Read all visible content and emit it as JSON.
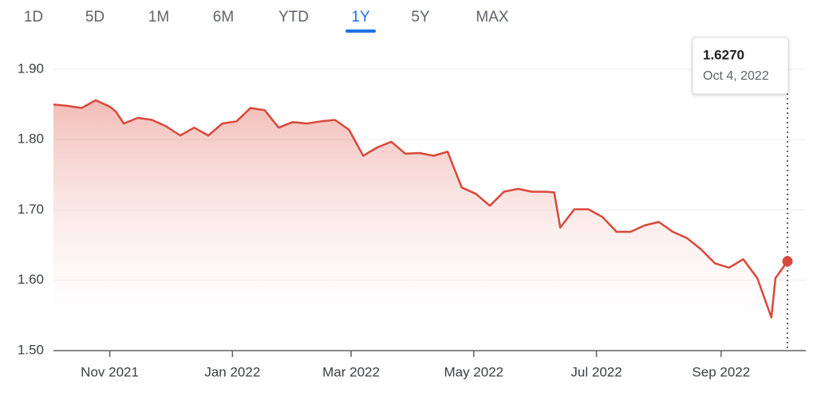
{
  "tabs": [
    "1D",
    "5D",
    "1M",
    "6M",
    "YTD",
    "1Y",
    "5Y",
    "MAX"
  ],
  "selected_tab": 5,
  "chart_data": {
    "type": "line",
    "color": "#d9483b",
    "grid": true,
    "ylim": [
      1.5,
      1.9
    ],
    "yticks": [
      {
        "value": 1.5,
        "label": "1.50"
      },
      {
        "value": 1.6,
        "label": "1.60"
      },
      {
        "value": 1.7,
        "label": "1.70"
      },
      {
        "value": 1.8,
        "label": "1.80"
      },
      {
        "value": 1.9,
        "label": "1.90"
      }
    ],
    "xlim": [
      "2021-10-04",
      "2022-10-04"
    ],
    "xticks": [
      {
        "value": "2021-11-01",
        "label": "Nov 2021"
      },
      {
        "value": "2022-01-01",
        "label": "Jan 2022"
      },
      {
        "value": "2022-03-01",
        "label": "Mar 2022"
      },
      {
        "value": "2022-05-01",
        "label": "May 2022"
      },
      {
        "value": "2022-07-01",
        "label": "Jul 2022"
      },
      {
        "value": "2022-09-01",
        "label": "Sep 2022"
      }
    ],
    "x": [
      "2021-10-04",
      "2021-10-11",
      "2021-10-18",
      "2021-10-25",
      "2021-11-01",
      "2021-11-04",
      "2021-11-08",
      "2021-11-15",
      "2021-11-22",
      "2021-11-29",
      "2021-12-06",
      "2021-12-13",
      "2021-12-20",
      "2021-12-27",
      "2022-01-03",
      "2022-01-10",
      "2022-01-17",
      "2022-01-24",
      "2022-01-31",
      "2022-02-07",
      "2022-02-14",
      "2022-02-21",
      "2022-02-28",
      "2022-03-07",
      "2022-03-14",
      "2022-03-21",
      "2022-03-28",
      "2022-04-04",
      "2022-04-11",
      "2022-04-18",
      "2022-04-25",
      "2022-05-02",
      "2022-05-09",
      "2022-05-16",
      "2022-05-23",
      "2022-05-30",
      "2022-06-06",
      "2022-06-10",
      "2022-06-13",
      "2022-06-20",
      "2022-06-27",
      "2022-07-04",
      "2022-07-11",
      "2022-07-18",
      "2022-07-25",
      "2022-08-01",
      "2022-08-08",
      "2022-08-15",
      "2022-08-22",
      "2022-08-29",
      "2022-09-05",
      "2022-09-12",
      "2022-09-19",
      "2022-09-26",
      "2022-09-28",
      "2022-10-04"
    ],
    "values": [
      1.85,
      1.848,
      1.845,
      1.856,
      1.847,
      1.84,
      1.823,
      1.831,
      1.828,
      1.819,
      1.806,
      1.817,
      1.806,
      1.823,
      1.826,
      1.845,
      1.842,
      1.817,
      1.825,
      1.823,
      1.826,
      1.828,
      1.814,
      1.777,
      1.789,
      1.797,
      1.78,
      1.781,
      1.777,
      1.783,
      1.732,
      1.723,
      1.706,
      1.726,
      1.73,
      1.726,
      1.726,
      1.725,
      1.675,
      1.701,
      1.701,
      1.69,
      1.669,
      1.669,
      1.678,
      1.683,
      1.669,
      1.66,
      1.644,
      1.624,
      1.618,
      1.63,
      1.603,
      1.547,
      1.603,
      1.627
    ],
    "tooltip": {
      "value": "1.6270",
      "date": "Oct 4, 2022"
    }
  }
}
